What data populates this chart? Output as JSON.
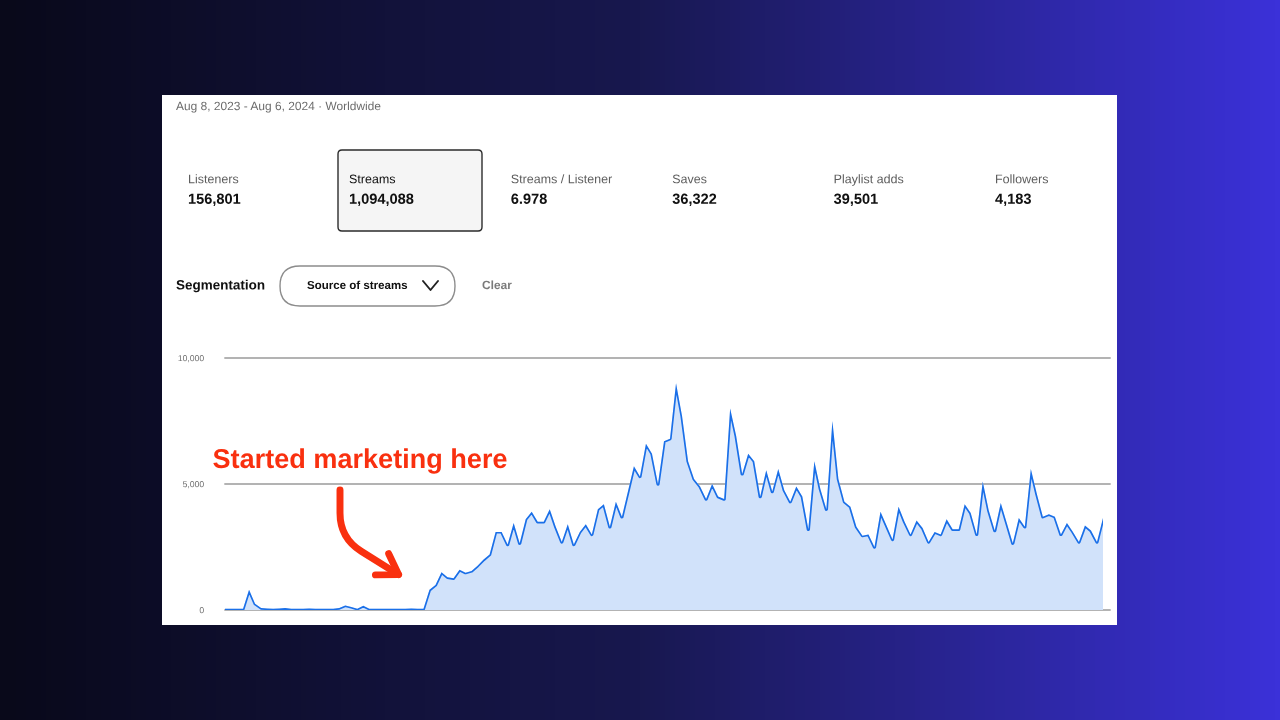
{
  "chart_data": [
    {
      "type": "other",
      "title": "Aug 8, 2023 - Aug 6, 2024 · Worldwide",
      "annotations": [
        "Listeners",
        "156,801",
        "Streams",
        "1,094,088",
        "Streams / Listener",
        "6.978",
        "Saves",
        "36,322",
        "Playlist adds",
        "39,501",
        "Followers",
        "4,183",
        "Segmentation",
        "Source of streams",
        "Clear"
      ]
    },
    {
      "type": "area",
      "categories": [
        null,
        null,
        null,
        null,
        null,
        null,
        null,
        null,
        null,
        null,
        null,
        null,
        null,
        null,
        null,
        null,
        null,
        null,
        null,
        null,
        null,
        null,
        null,
        null,
        null,
        null,
        null,
        null,
        null,
        null,
        null,
        null,
        null,
        null,
        null,
        null,
        null,
        null,
        null,
        null,
        null,
        null,
        null,
        null,
        null,
        null,
        null,
        null,
        null,
        null,
        null,
        null,
        null,
        null,
        null,
        null,
        null,
        null,
        null,
        null,
        null,
        null,
        null,
        null,
        null,
        null,
        null,
        null,
        null,
        null,
        null,
        null,
        null,
        null,
        null,
        null,
        null,
        null,
        null,
        null,
        null,
        null,
        null,
        null,
        null,
        null,
        null,
        null,
        null,
        null,
        null,
        null,
        null,
        null,
        null,
        null,
        null,
        null,
        null,
        null,
        null,
        null,
        null,
        null,
        null,
        null,
        null,
        null,
        null,
        null,
        null,
        null,
        null,
        null,
        null,
        null,
        null,
        null,
        null,
        null,
        null,
        null,
        null,
        null,
        null,
        null,
        null,
        null,
        null,
        null,
        null,
        null,
        null,
        null,
        null,
        null,
        null,
        null,
        null,
        null,
        null,
        null,
        null,
        null,
        null,
        null,
        null
      ],
      "series": [
        {
          "color": "#1a6fe8",
          "values": [
            50,
            50,
            50,
            50,
            800,
            250,
            80,
            60,
            50,
            60,
            80,
            50,
            50,
            50,
            60,
            50,
            50,
            50,
            50,
            80,
            180,
            120,
            50,
            170,
            50,
            50,
            50,
            50,
            50,
            50,
            50,
            60,
            50,
            50,
            800,
            990,
            1500,
            1300,
            1260,
            1600,
            1480,
            1550,
            1760,
            2000,
            2200,
            3100,
            3100,
            2600,
            3450,
            2650,
            3600,
            3900,
            3500,
            3500,
            4000,
            3300,
            2700,
            3400,
            2600,
            3100,
            3400,
            3000,
            4000,
            4200,
            3300,
            4300,
            3700,
            4700,
            5700,
            5300,
            6600,
            6200,
            5000,
            6700,
            6800,
            9000,
            7700,
            5900,
            5200,
            4900,
            4400,
            5000,
            4500,
            4400,
            8000,
            6900,
            5400,
            6200,
            5900,
            4500,
            5550,
            4700,
            5600,
            4750,
            4300,
            4900,
            4500,
            3200,
            5900,
            4800,
            4000,
            7500,
            5200,
            4300,
            4100,
            3300,
            2950,
            3000,
            2500,
            3900,
            3350,
            2800,
            4100,
            3500,
            3000,
            3550,
            3250,
            2700,
            3100,
            3000,
            3600,
            3200,
            3200,
            4200,
            3850,
            3000,
            5100,
            3950,
            3150,
            4250,
            3450,
            2650,
            3650,
            3300,
            5600,
            4600,
            3700,
            3800,
            3700,
            3000,
            3450,
            3100,
            2700,
            3350,
            3150,
            2700,
            3650
          ]
        }
      ],
      "ylim": [
        0,
        10000
      ],
      "yticks": [
        0,
        {
          "value": 5000,
          "label": "5,000"
        },
        {
          "value": 10000,
          "label": "10,000"
        }
      ],
      "grid": "y",
      "annotations": [
        "Started marketing here"
      ]
    }
  ]
}
